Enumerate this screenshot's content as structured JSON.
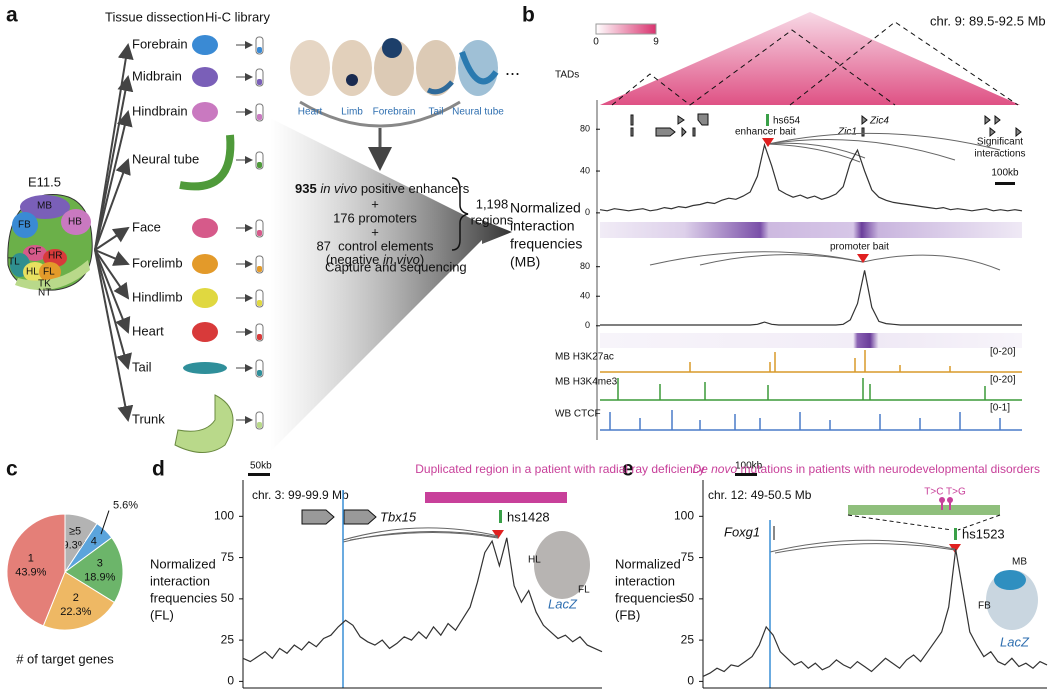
{
  "panel_labels": {
    "a": "a",
    "b": "b",
    "c": "c",
    "d": "d",
    "e": "e"
  },
  "panel_a": {
    "tissue_header": "Tissue dissection",
    "library_header": "Hi-C library",
    "stage": "E11.5",
    "regions": [
      "MB",
      "HB",
      "FB",
      "CF",
      "HR",
      "TL",
      "HL",
      "FL",
      "TK",
      "NT"
    ],
    "tissues": [
      "Forebrain",
      "Midbrain",
      "Hindbrain",
      "Neural tube",
      "Face",
      "Forelimb",
      "Hindlimb",
      "Heart",
      "Tail",
      "Trunk"
    ],
    "photos": [
      "Heart",
      "Limb",
      "Forebrain",
      "Tail",
      "Neural tube"
    ],
    "more": "...",
    "enhancers": [
      "935",
      "in vivo",
      "positive enhancers"
    ],
    "plus": "+",
    "promoters": "176 promoters",
    "controls": "87  control elements",
    "negative": [
      "(negative",
      "in vivo",
      ")"
    ],
    "total": "1,198",
    "total_unit": "regions",
    "capture": "Capture and sequencing",
    "output": [
      "Normalized",
      "interaction",
      "frequencies",
      "(MB)"
    ]
  },
  "panel_b": {
    "tads": "TADs",
    "colorbar": [
      0,
      9
    ],
    "region": "chr. 9: 89.5-92.5 Mb",
    "genes": [
      "hs654",
      "Zic4",
      "Zic1"
    ],
    "enhancer_bait": "enhancer bait",
    "promoter_bait": "promoter bait",
    "significant": [
      "Significant",
      "interactions"
    ],
    "scale": "100kb",
    "tracks": [
      {
        "name": "MB H3K27ac",
        "range": "[0-20]"
      },
      {
        "name": "MB H3K4me3",
        "range": "[0-20]"
      },
      {
        "name": "WB CTCF",
        "range": "[0-1]"
      }
    ]
  },
  "panel_d": {
    "scale": "50kb",
    "note": "Duplicated region in a patient with radial ray deficiency",
    "region": "chr. 3: 99-99.9 Mb",
    "gene": "Tbx15",
    "enhancer": "hs1428",
    "embryo_labels": [
      "HL",
      "FL"
    ],
    "reporter": "LacZ"
  },
  "panel_e": {
    "scale": "100kb",
    "note": [
      "De novo",
      "mutations in patients with neurodevelopmental disorders"
    ],
    "region": "chr. 12: 49-50.5 Mb",
    "gene": "Foxg1",
    "mutations": "T>C T>G",
    "enhancer": "hs1523",
    "embryo_labels": [
      "MB",
      "FB"
    ],
    "reporter": "LacZ"
  },
  "chart_data": [
    {
      "type": "line",
      "color": "#333333",
      "ylim": [
        -3,
        85
      ],
      "yticks": [
        0,
        40,
        80
      ],
      "values": [
        3,
        2,
        4,
        3,
        2,
        3,
        4,
        2,
        3,
        5,
        4,
        6,
        5,
        7,
        8,
        10,
        9,
        12,
        14,
        13,
        16,
        20,
        35,
        65,
        45,
        22,
        18,
        15,
        17,
        14,
        16,
        13,
        15,
        18,
        25,
        48,
        60,
        40,
        22,
        15,
        12,
        10,
        9,
        8,
        7,
        6,
        5,
        4,
        5,
        3,
        4,
        3,
        2,
        3,
        4,
        2,
        3,
        2,
        3,
        2
      ]
    },
    {
      "type": "line",
      "color": "#333333",
      "ylim": [
        -3,
        85
      ],
      "yticks": [
        0,
        40,
        80
      ],
      "values": [
        1,
        1,
        1,
        1,
        1,
        1,
        1,
        1,
        1,
        1,
        1,
        1,
        1,
        1,
        1,
        1,
        1,
        1,
        1,
        1,
        1,
        1,
        2,
        5,
        2,
        1,
        1,
        1,
        1,
        1,
        1,
        1,
        1,
        1,
        2,
        8,
        30,
        75,
        25,
        6,
        3,
        2,
        1,
        1,
        1,
        1,
        1,
        1,
        1,
        1,
        1,
        1,
        1,
        1,
        1,
        1,
        1,
        1,
        1,
        1
      ]
    },
    {
      "type": "pie",
      "xlabel": "# of target genes",
      "categories": [
        "≥5",
        "4",
        "3",
        "2",
        "1"
      ],
      "values": [
        9.3,
        5.6,
        18.9,
        22.3,
        43.9
      ],
      "value_labels": [
        "9.3%",
        "5.6%",
        "18.9%",
        "22.3%",
        "43.9%"
      ],
      "colors": [
        "#b3b3b3",
        "#5ba4dc",
        "#6cb56a",
        "#eeb864",
        "#e47f78"
      ]
    },
    {
      "type": "line",
      "color": "#333333",
      "ylim": [
        -4,
        122
      ],
      "yticks": [
        0,
        25,
        50,
        75,
        100
      ],
      "ylabel": [
        "Normalized",
        "interaction",
        "frequencies",
        "(FL)"
      ],
      "values": [
        14,
        12,
        15,
        18,
        14,
        20,
        17,
        22,
        19,
        24,
        21,
        26,
        28,
        33,
        37,
        34,
        27,
        24,
        22,
        25,
        20,
        23,
        27,
        25,
        30,
        26,
        33,
        28,
        35,
        31,
        38,
        45,
        60,
        78,
        85,
        70,
        87,
        58,
        48,
        55,
        42,
        34,
        30,
        26,
        28,
        24,
        27,
        22,
        20,
        18
      ]
    },
    {
      "type": "line",
      "color": "#333333",
      "ylim": [
        -4,
        122
      ],
      "yticks": [
        0,
        25,
        50,
        75,
        100
      ],
      "ylabel": [
        "Normalized",
        "interaction",
        "frequencies",
        "(FB)"
      ],
      "values": [
        3,
        5,
        8,
        6,
        10,
        9,
        12,
        15,
        22,
        33,
        28,
        18,
        14,
        10,
        12,
        8,
        11,
        7,
        9,
        13,
        10,
        8,
        12,
        9,
        6,
        10,
        14,
        11,
        8,
        13,
        16,
        12,
        18,
        24,
        30,
        45,
        80,
        55,
        30,
        22,
        15,
        18,
        12,
        10,
        14,
        9,
        11,
        8,
        12,
        10
      ]
    }
  ]
}
